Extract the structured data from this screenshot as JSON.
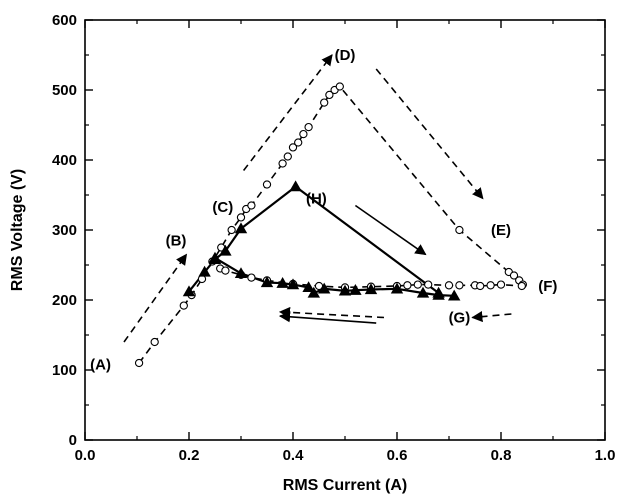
{
  "chart_data": {
    "type": "scatter",
    "title": "",
    "xlabel": "RMS Current (A)",
    "ylabel": "RMS Voltage (V)",
    "xlim": [
      0.0,
      1.0
    ],
    "ylim": [
      0,
      600
    ],
    "xticks": [
      0.0,
      0.2,
      0.4,
      0.6,
      0.8,
      1.0
    ],
    "xtick_labels": [
      "0.0",
      "0.2",
      "0.4",
      "0.6",
      "0.8",
      "1.0"
    ],
    "yticks": [
      0,
      100,
      200,
      300,
      400,
      500,
      600
    ],
    "ytick_labels": [
      "0",
      "100",
      "200",
      "300",
      "400",
      "500",
      "600"
    ],
    "grid": false,
    "series": [
      {
        "marker": "open-circle",
        "line": "dashed",
        "x": [
          0.104,
          0.134,
          0.19,
          0.205,
          0.225,
          0.245,
          0.262,
          0.282,
          0.3,
          0.31,
          0.32,
          0.35,
          0.38,
          0.39,
          0.4,
          0.41,
          0.42,
          0.43,
          0.46,
          0.47,
          0.48,
          0.49,
          0.72,
          0.815,
          0.825,
          0.835,
          0.842
        ],
        "y": [
          110,
          140,
          192,
          207,
          230,
          255,
          275,
          300,
          318,
          330,
          335,
          365,
          395,
          405,
          418,
          425,
          437,
          447,
          482,
          493,
          500,
          505,
          300,
          240,
          235,
          228,
          222
        ]
      },
      {
        "marker": "open-circle",
        "line": "dashed",
        "x": [
          0.26,
          0.27,
          0.3,
          0.32,
          0.35,
          0.4,
          0.45,
          0.5,
          0.55,
          0.6,
          0.62,
          0.64,
          0.66,
          0.7,
          0.72,
          0.75,
          0.76,
          0.78,
          0.8,
          0.84
        ],
        "y": [
          245,
          242,
          236,
          232,
          228,
          223,
          220,
          218,
          219,
          220,
          221,
          222,
          222,
          221,
          221,
          221,
          220,
          221,
          222,
          220
        ]
      },
      {
        "marker": "filled-triangle",
        "line": "solid",
        "x": [
          0.2,
          0.23,
          0.25,
          0.27,
          0.3,
          0.405,
          0.68
        ],
        "y": [
          212,
          240,
          258,
          270,
          302,
          362,
          210
        ]
      },
      {
        "marker": "filled-triangle",
        "line": "solid",
        "x": [
          0.25,
          0.3,
          0.35,
          0.38,
          0.4,
          0.43,
          0.44,
          0.46,
          0.5,
          0.52,
          0.55,
          0.6,
          0.65,
          0.68,
          0.71
        ],
        "y": [
          260,
          238,
          225,
          224,
          222,
          218,
          210,
          216,
          213,
          214,
          215,
          216,
          210,
          207,
          206
        ]
      }
    ],
    "annotations": [
      {
        "text": "(A)",
        "x": 0.03,
        "y": 108
      },
      {
        "text": "(B)",
        "x": 0.175,
        "y": 285
      },
      {
        "text": "(C)",
        "x": 0.265,
        "y": 333
      },
      {
        "text": "(D)",
        "x": 0.5,
        "y": 550
      },
      {
        "text": "(E)",
        "x": 0.8,
        "y": 300
      },
      {
        "text": "(F)",
        "x": 0.89,
        "y": 220
      },
      {
        "text": "(G)",
        "x": 0.72,
        "y": 175
      },
      {
        "text": "(H)",
        "x": 0.445,
        "y": 345
      }
    ],
    "arrows": [
      {
        "style": "dashed",
        "x1": 0.075,
        "y1": 140,
        "x2": 0.195,
        "y2": 265
      },
      {
        "style": "dashed",
        "x1": 0.305,
        "y1": 385,
        "x2": 0.475,
        "y2": 550
      },
      {
        "style": "dashed",
        "x1": 0.56,
        "y1": 530,
        "x2": 0.765,
        "y2": 345
      },
      {
        "style": "dashed",
        "x1": 0.82,
        "y1": 180,
        "x2": 0.745,
        "y2": 175
      },
      {
        "style": "dashed",
        "x1": 0.575,
        "y1": 175,
        "x2": 0.375,
        "y2": 183
      },
      {
        "style": "solid",
        "x1": 0.56,
        "y1": 167,
        "x2": 0.375,
        "y2": 177
      },
      {
        "style": "solid",
        "x1": 0.52,
        "y1": 335,
        "x2": 0.655,
        "y2": 265
      }
    ]
  }
}
